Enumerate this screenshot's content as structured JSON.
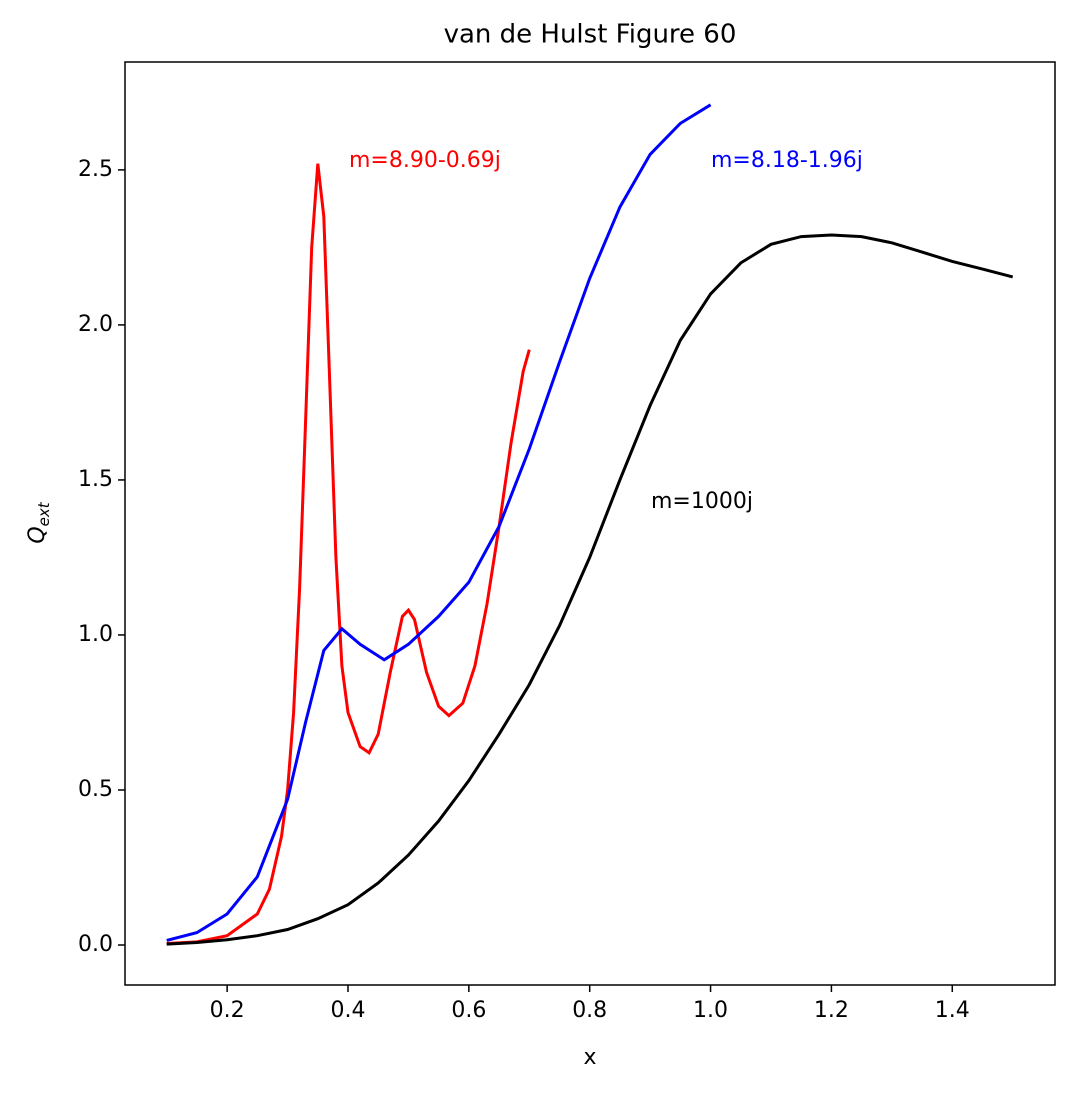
{
  "chart_data": {
    "type": "line",
    "title": "van de Hulst Figure 60",
    "xlabel": "x",
    "ylabel": {
      "base": "Q",
      "sub": "ext"
    },
    "xlim": [
      0.031,
      1.57
    ],
    "ylim": [
      -0.129,
      2.848
    ],
    "xticks": [
      0.2,
      0.4,
      0.6,
      0.8,
      {
        "value": 1.0,
        "label": "1.0"
      },
      1.2,
      1.4
    ],
    "yticks": [
      {
        "value": 0,
        "label": "0.0"
      },
      0.5,
      {
        "value": 1,
        "label": "1.0"
      },
      1.5,
      {
        "value": 2,
        "label": "2.0"
      },
      2.5
    ],
    "series": [
      {
        "color": "#ff0000",
        "x": [
          0.1,
          0.15,
          0.2,
          0.25,
          0.27,
          0.29,
          0.3,
          0.31,
          0.32,
          0.33,
          0.34,
          0.35,
          0.36,
          0.37,
          0.38,
          0.39,
          0.4,
          0.42,
          0.435,
          0.45,
          0.47,
          0.49,
          0.5,
          0.51,
          0.53,
          0.55,
          0.567,
          0.59,
          0.61,
          0.63,
          0.65,
          0.67,
          0.69,
          0.7
        ],
        "values": [
          0.005,
          0.01,
          0.03,
          0.1,
          0.18,
          0.35,
          0.5,
          0.75,
          1.15,
          1.7,
          2.25,
          2.52,
          2.35,
          1.8,
          1.25,
          0.9,
          0.75,
          0.64,
          0.62,
          0.68,
          0.88,
          1.06,
          1.08,
          1.05,
          0.88,
          0.77,
          0.74,
          0.78,
          0.9,
          1.1,
          1.35,
          1.62,
          1.85,
          1.92
        ]
      },
      {
        "color": "#0000ff",
        "x": [
          0.1,
          0.15,
          0.2,
          0.25,
          0.3,
          0.33,
          0.36,
          0.39,
          0.42,
          0.46,
          0.5,
          0.55,
          0.6,
          0.65,
          0.7,
          0.75,
          0.8,
          0.85,
          0.9,
          0.95,
          1.0
        ],
        "values": [
          0.015,
          0.04,
          0.1,
          0.22,
          0.47,
          0.72,
          0.95,
          1.02,
          0.97,
          0.92,
          0.97,
          1.06,
          1.17,
          1.35,
          1.6,
          1.88,
          2.15,
          2.38,
          2.55,
          2.65,
          2.71
        ]
      },
      {
        "color": "#000000",
        "x": [
          0.1,
          0.15,
          0.2,
          0.25,
          0.3,
          0.35,
          0.4,
          0.45,
          0.5,
          0.55,
          0.6,
          0.65,
          0.7,
          0.75,
          0.8,
          0.85,
          0.9,
          0.95,
          1.0,
          1.05,
          1.1,
          1.15,
          1.2,
          1.25,
          1.3,
          1.35,
          1.4,
          1.45,
          1.5
        ],
        "values": [
          0.003,
          0.008,
          0.017,
          0.03,
          0.05,
          0.085,
          0.13,
          0.2,
          0.29,
          0.4,
          0.53,
          0.68,
          0.84,
          1.03,
          1.25,
          1.5,
          1.74,
          1.95,
          2.1,
          2.2,
          2.26,
          2.285,
          2.29,
          2.285,
          2.265,
          2.235,
          2.205,
          2.18,
          2.155
        ]
      }
    ],
    "annotations": [
      {
        "text": "m=8.90-0.69j",
        "color": "#ff0000"
      },
      {
        "text": "m=8.18-1.96j",
        "color": "#0000ff"
      },
      {
        "text": "m=1000j",
        "color": "#000000"
      }
    ]
  }
}
